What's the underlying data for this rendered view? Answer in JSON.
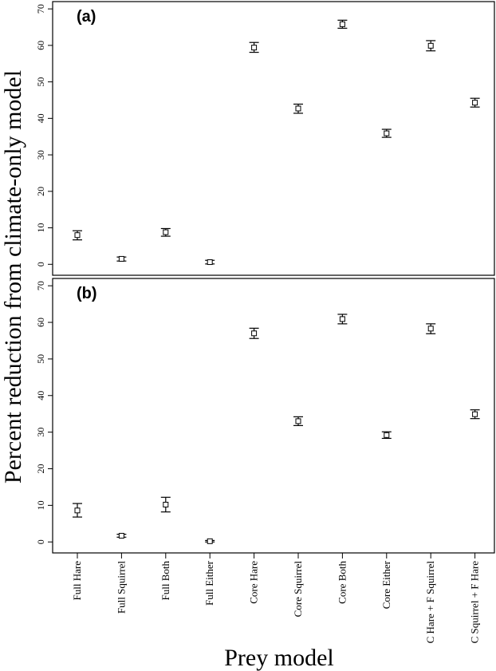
{
  "chart_data": [
    {
      "type": "scatter",
      "panel_label": "(a)",
      "categories": [
        "Full Hare",
        "Full Squirrel",
        "Full Both",
        "Full Either",
        "Core Hare",
        "Core Squirrel",
        "Core Both",
        "Core Either",
        "C Hare + F Squirrel",
        "C Squirrel + F Hare"
      ],
      "values": [
        8.0,
        1.5,
        8.8,
        0.6,
        59.4,
        42.7,
        65.8,
        35.9,
        59.9,
        44.3
      ],
      "error_low": [
        6.7,
        0.9,
        7.7,
        0.1,
        58.1,
        41.4,
        64.7,
        34.8,
        58.5,
        43.1
      ],
      "error_high": [
        9.2,
        2.0,
        9.8,
        1.1,
        60.8,
        43.9,
        66.9,
        37.0,
        61.3,
        45.5
      ],
      "ylim": [
        -3,
        72
      ],
      "yticks": [
        0,
        10,
        20,
        30,
        40,
        50,
        60,
        70
      ],
      "marker": "open-square",
      "grid": false
    },
    {
      "type": "scatter",
      "panel_label": "(b)",
      "categories": [
        "Full Hare",
        "Full Squirrel",
        "Full Both",
        "Full Either",
        "Core Hare",
        "Core Squirrel",
        "Core Both",
        "Core Either",
        "C Hare + F Squirrel",
        "C Squirrel + F Hare"
      ],
      "values": [
        8.6,
        1.7,
        10.2,
        0.2,
        57.0,
        33.0,
        60.9,
        29.2,
        58.3,
        34.9
      ],
      "error_low": [
        6.8,
        1.3,
        8.2,
        0.0,
        55.6,
        31.8,
        59.6,
        28.3,
        56.9,
        33.7
      ],
      "error_high": [
        10.5,
        2.1,
        12.2,
        0.4,
        58.4,
        34.2,
        62.2,
        30.1,
        59.6,
        36.1
      ],
      "ylim": [
        -3,
        72
      ],
      "yticks": [
        0,
        10,
        20,
        30,
        40,
        50,
        60,
        70
      ],
      "marker": "open-square",
      "grid": false
    }
  ],
  "axes": {
    "ylabel": "Percent reduction from climate-only model",
    "xlabel": "Prey model"
  }
}
